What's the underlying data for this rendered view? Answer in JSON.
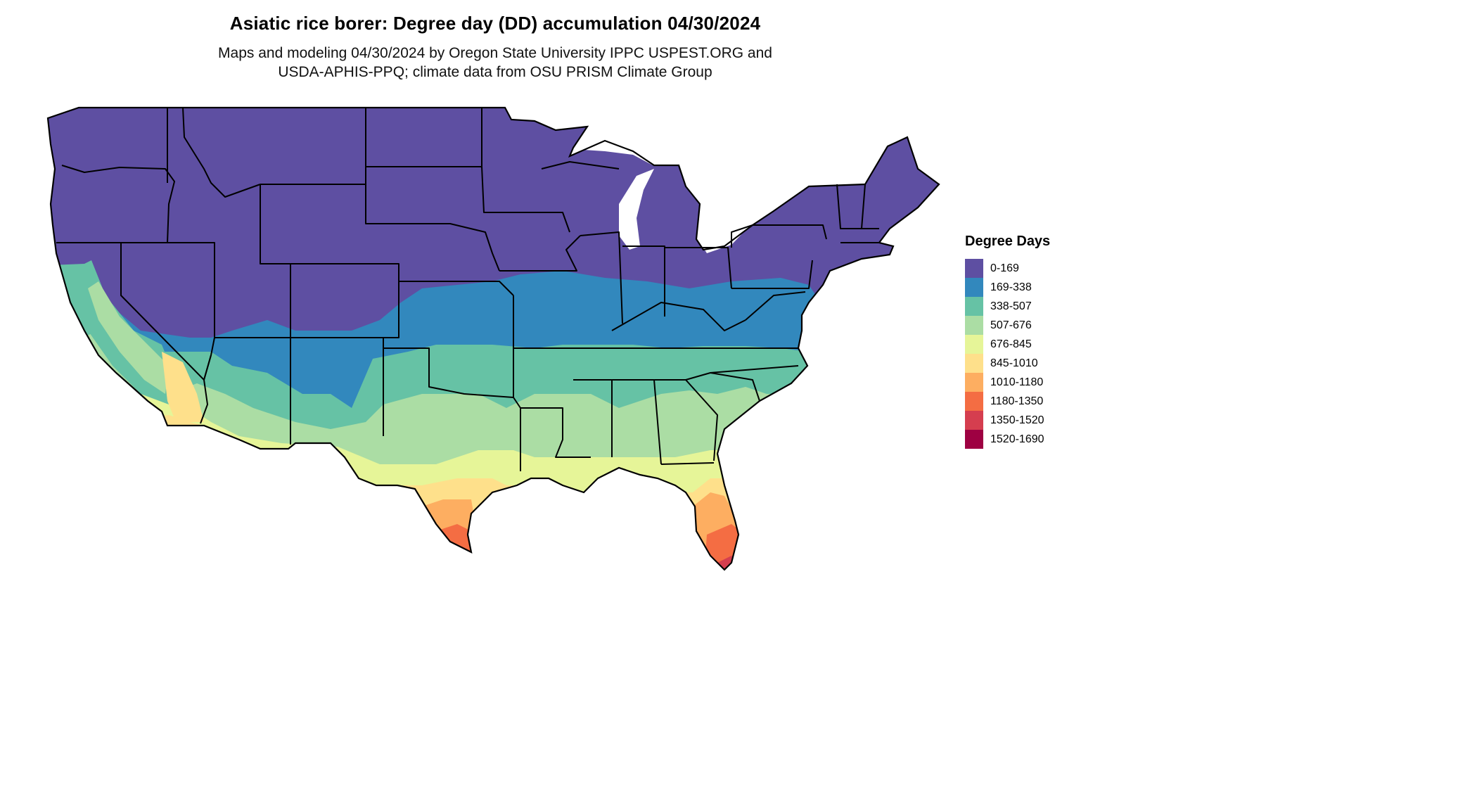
{
  "title": "Asiatic rice borer: Degree day (DD) accumulation 04/30/2024",
  "subtitle_line1": "Maps and modeling 04/30/2024 by Oregon State University IPPC USPEST.ORG and",
  "subtitle_line2": "USDA-APHIS-PPQ; climate data from OSU PRISM Climate Group",
  "legend": {
    "title": "Degree Days",
    "items": [
      {
        "label": "0-169",
        "color": "#5E4FA2"
      },
      {
        "label": "169-338",
        "color": "#3288BD"
      },
      {
        "label": "338-507",
        "color": "#66C2A5"
      },
      {
        "label": "507-676",
        "color": "#ABDDA4"
      },
      {
        "label": "676-845",
        "color": "#E6F598"
      },
      {
        "label": "845-1010",
        "color": "#FEE08B"
      },
      {
        "label": "1010-1180",
        "color": "#FDAE61"
      },
      {
        "label": "1180-1350",
        "color": "#F46D43"
      },
      {
        "label": "1350-1520",
        "color": "#D53E4F"
      },
      {
        "label": "1520-1690",
        "color": "#9E0142"
      }
    ]
  }
}
